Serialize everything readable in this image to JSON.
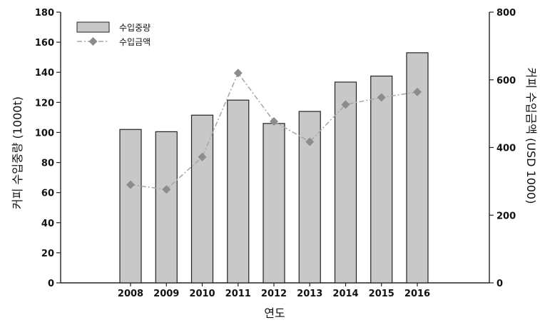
{
  "chart_data": {
    "type": "bar",
    "categories": [
      "2008",
      "2009",
      "2010",
      "2011",
      "2012",
      "2013",
      "2014",
      "2015",
      "2016"
    ],
    "series": [
      {
        "name": "수입중량",
        "type": "bar",
        "axis": "left",
        "values": [
          102,
          100.5,
          111.5,
          121.5,
          106,
          114,
          133.5,
          137.5,
          153
        ]
      },
      {
        "name": "수입금액",
        "type": "line",
        "axis": "right",
        "values": [
          290,
          276,
          372,
          620,
          477,
          417,
          527,
          548,
          564
        ]
      }
    ],
    "xlabel": "연도",
    "ylabel": "커피 수입중량 (1000t)",
    "y2label": "커피 수입금액 (USD 1000)",
    "ylim": [
      0,
      180
    ],
    "y2lim": [
      0,
      800
    ],
    "yticks": [
      0,
      20,
      40,
      60,
      80,
      100,
      120,
      140,
      160,
      180
    ],
    "y2ticks": [
      0,
      200,
      400,
      600,
      800
    ],
    "legend_position": "top-left",
    "grid": false,
    "colors": {
      "bar_fill": "#c8c8c8",
      "bar_stroke": "#222222",
      "line": "#a6a6a6",
      "marker": "#8c8c8c"
    }
  }
}
